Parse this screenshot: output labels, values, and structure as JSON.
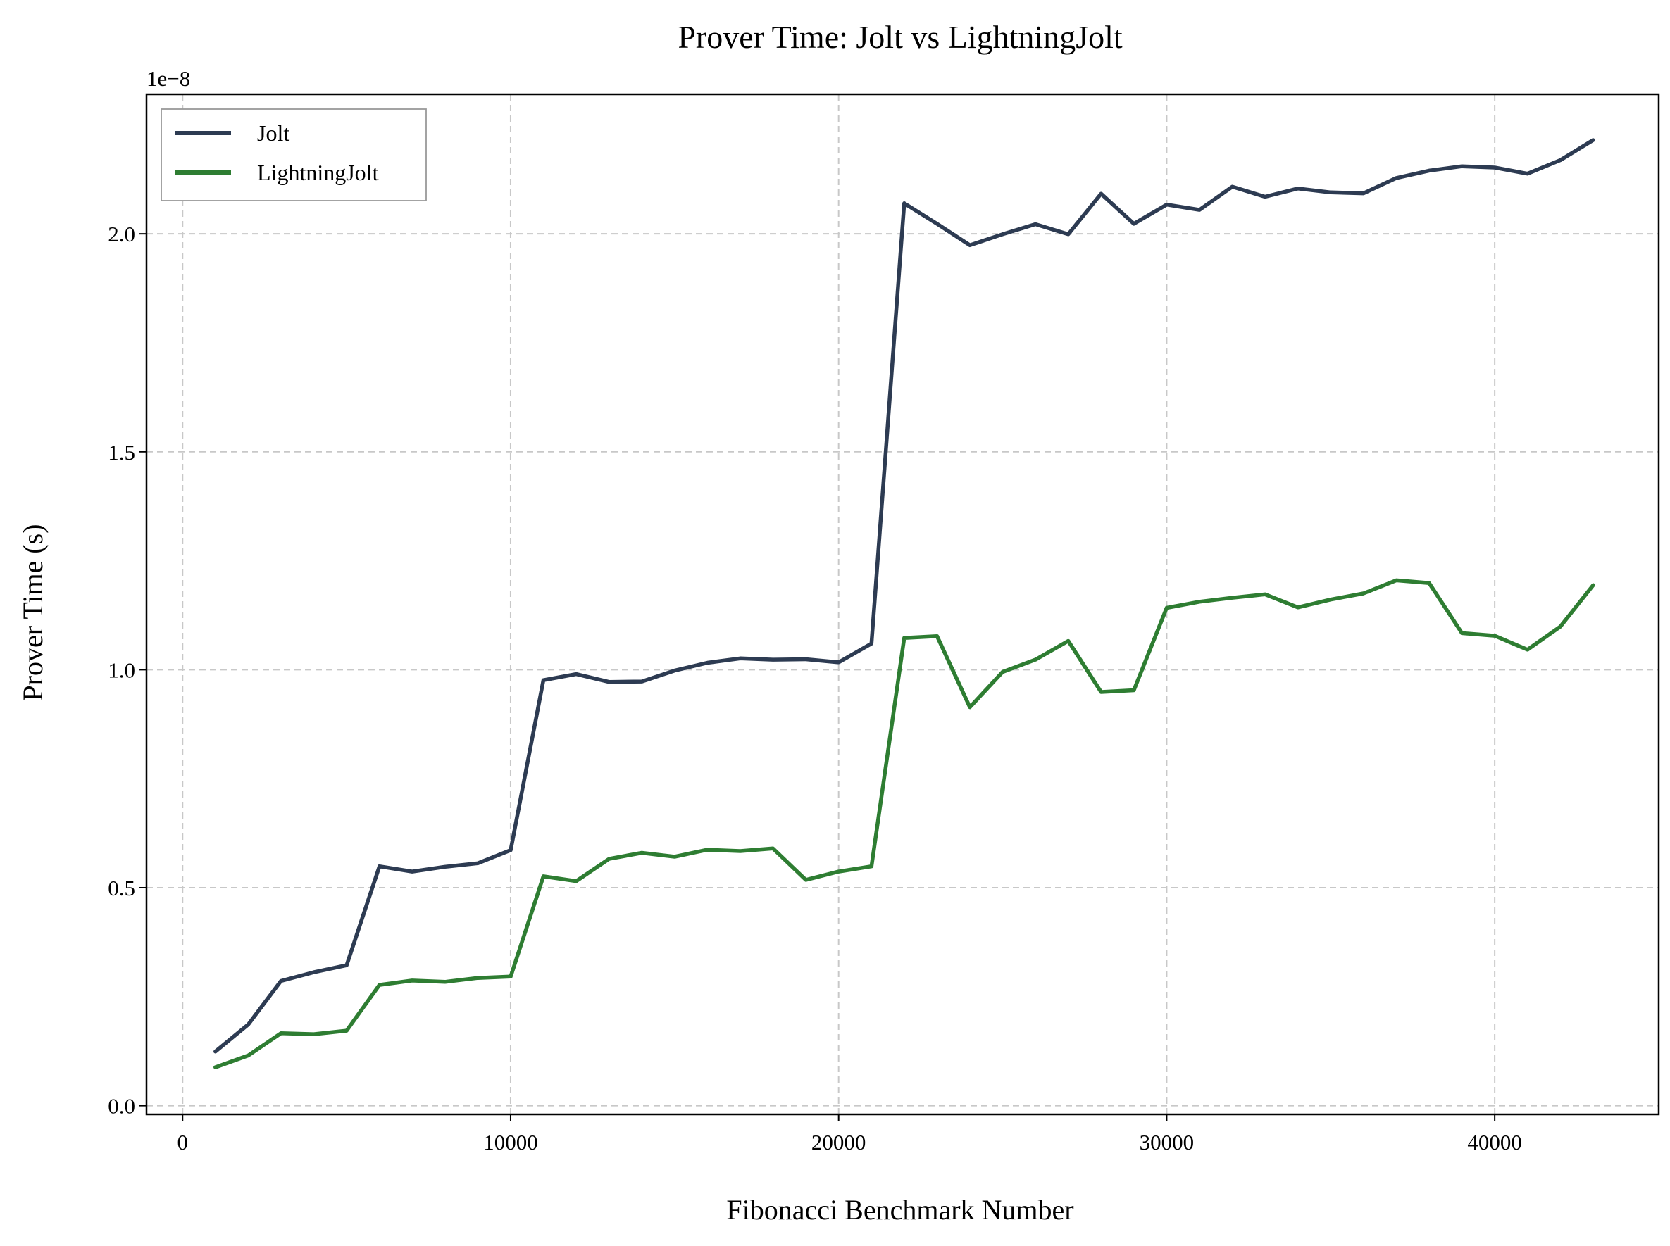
{
  "chart_data": {
    "type": "line",
    "title": "Prover Time: Jolt vs LightningJolt",
    "xlabel": "Fibonacci Benchmark Number",
    "ylabel": "Prover Time (s)",
    "y_offset_label": "1e−8",
    "xlim": [
      -1100,
      45000
    ],
    "ylim": [
      -0.02,
      2.32
    ],
    "x_ticks": [
      0,
      10000,
      20000,
      30000,
      40000
    ],
    "x_tick_labels": [
      "0",
      "10000",
      "20000",
      "30000",
      "40000"
    ],
    "y_ticks": [
      0.0,
      0.5,
      1.0,
      1.5,
      2.0
    ],
    "y_tick_labels": [
      "0.0",
      "0.5",
      "1.0",
      "1.5",
      "2.0"
    ],
    "grid": true,
    "legend_position": "top-left",
    "x": [
      1000,
      2000,
      3000,
      4000,
      5000,
      6000,
      7000,
      8000,
      9000,
      10000,
      11000,
      12000,
      13000,
      14000,
      15000,
      16000,
      17000,
      18000,
      19000,
      20000,
      21000,
      22000,
      23000,
      24000,
      25000,
      26000,
      27000,
      28000,
      29000,
      30000,
      31000,
      32000,
      33000,
      34000,
      35000,
      36000,
      37000,
      38000,
      39000,
      40000,
      41000,
      42000,
      43000
    ],
    "series": [
      {
        "name": "Jolt",
        "color": "#2d3b52",
        "values": [
          0.124,
          0.186,
          0.286,
          0.306,
          0.322,
          0.549,
          0.537,
          0.548,
          0.556,
          0.586,
          0.976,
          0.99,
          0.972,
          0.973,
          0.998,
          1.016,
          1.026,
          1.023,
          1.024,
          1.017,
          1.06,
          2.07,
          2.023,
          1.974,
          1.999,
          2.022,
          1.999,
          2.092,
          2.023,
          2.067,
          2.055,
          2.108,
          2.085,
          2.104,
          2.095,
          2.093,
          2.128,
          2.145,
          2.155,
          2.152,
          2.138,
          2.169,
          2.215
        ]
      },
      {
        "name": "LightningJolt",
        "color": "#2e7d32",
        "values": [
          0.088,
          0.115,
          0.166,
          0.164,
          0.172,
          0.277,
          0.287,
          0.284,
          0.293,
          0.296,
          0.526,
          0.515,
          0.566,
          0.58,
          0.571,
          0.587,
          0.584,
          0.59,
          0.518,
          0.537,
          0.549,
          1.073,
          1.077,
          0.914,
          0.995,
          1.023,
          1.066,
          0.949,
          0.953,
          1.142,
          1.156,
          1.165,
          1.173,
          1.143,
          1.161,
          1.175,
          1.205,
          1.199,
          1.084,
          1.078,
          1.046,
          1.099,
          1.194
        ]
      }
    ]
  }
}
